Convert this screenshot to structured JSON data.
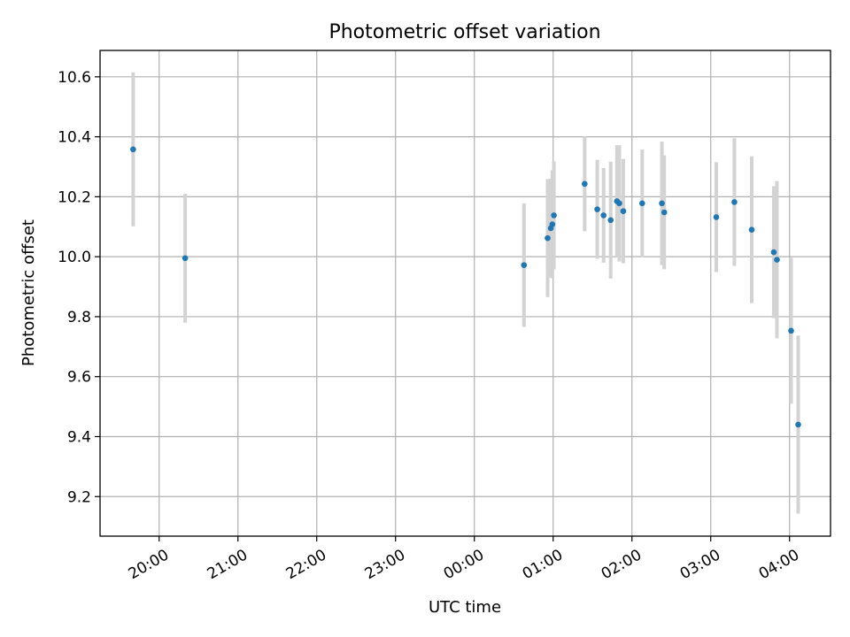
{
  "chart_data": {
    "type": "scatter",
    "title": "Photometric offset variation",
    "xlabel": "UTC time",
    "ylabel": "Photometric offset",
    "x_unit": "UTC time of night (hours since 00:00, negative = previous evening)",
    "xlim": [
      -4.75,
      4.52
    ],
    "ylim": [
      9.068,
      10.688
    ],
    "grid": true,
    "x_ticks": [
      {
        "value": -4,
        "label": "20:00"
      },
      {
        "value": -3,
        "label": "21:00"
      },
      {
        "value": -2,
        "label": "22:00"
      },
      {
        "value": -1,
        "label": "23:00"
      },
      {
        "value": 0,
        "label": "00:00"
      },
      {
        "value": 1,
        "label": "01:00"
      },
      {
        "value": 2,
        "label": "02:00"
      },
      {
        "value": 3,
        "label": "03:00"
      },
      {
        "value": 4,
        "label": "04:00"
      }
    ],
    "y_ticks": [
      {
        "value": 9.2,
        "label": "9.2"
      },
      {
        "value": 9.4,
        "label": "9.4"
      },
      {
        "value": 9.6,
        "label": "9.6"
      },
      {
        "value": 9.8,
        "label": "9.8"
      },
      {
        "value": 10.0,
        "label": "10.0"
      },
      {
        "value": 10.2,
        "label": "10.2"
      },
      {
        "value": 10.4,
        "label": "10.4"
      },
      {
        "value": 10.6,
        "label": "10.6"
      }
    ],
    "colors": {
      "point": "#1f77b4",
      "errorbar": "#d3d3d3",
      "grid": "#b0b0b0"
    },
    "points": [
      {
        "x": -4.33,
        "y": 10.358,
        "err": 0.257
      },
      {
        "x": -3.67,
        "y": 9.995,
        "err": 0.215
      },
      {
        "x": 0.63,
        "y": 9.972,
        "err": 0.206
      },
      {
        "x": 0.93,
        "y": 10.062,
        "err": 0.197
      },
      {
        "x": 0.97,
        "y": 10.095,
        "err": 0.165
      },
      {
        "x": 0.99,
        "y": 10.108,
        "err": 0.18
      },
      {
        "x": 1.01,
        "y": 10.138,
        "err": 0.18
      },
      {
        "x": 1.4,
        "y": 10.243,
        "err": 0.158
      },
      {
        "x": 1.56,
        "y": 10.158,
        "err": 0.165
      },
      {
        "x": 1.64,
        "y": 10.138,
        "err": 0.158
      },
      {
        "x": 1.73,
        "y": 10.122,
        "err": 0.195
      },
      {
        "x": 1.81,
        "y": 10.185,
        "err": 0.187
      },
      {
        "x": 1.84,
        "y": 10.178,
        "err": 0.194
      },
      {
        "x": 1.89,
        "y": 10.152,
        "err": 0.174
      },
      {
        "x": 2.13,
        "y": 10.178,
        "err": 0.179
      },
      {
        "x": 2.38,
        "y": 10.178,
        "err": 0.206
      },
      {
        "x": 2.41,
        "y": 10.148,
        "err": 0.19
      },
      {
        "x": 3.07,
        "y": 10.132,
        "err": 0.183
      },
      {
        "x": 3.3,
        "y": 10.182,
        "err": 0.213
      },
      {
        "x": 3.52,
        "y": 10.09,
        "err": 0.245
      },
      {
        "x": 3.8,
        "y": 10.015,
        "err": 0.22
      },
      {
        "x": 3.84,
        "y": 9.99,
        "err": 0.262
      },
      {
        "x": 4.02,
        "y": 9.753,
        "err": 0.243
      },
      {
        "x": 4.11,
        "y": 9.44,
        "err": 0.297
      }
    ]
  }
}
